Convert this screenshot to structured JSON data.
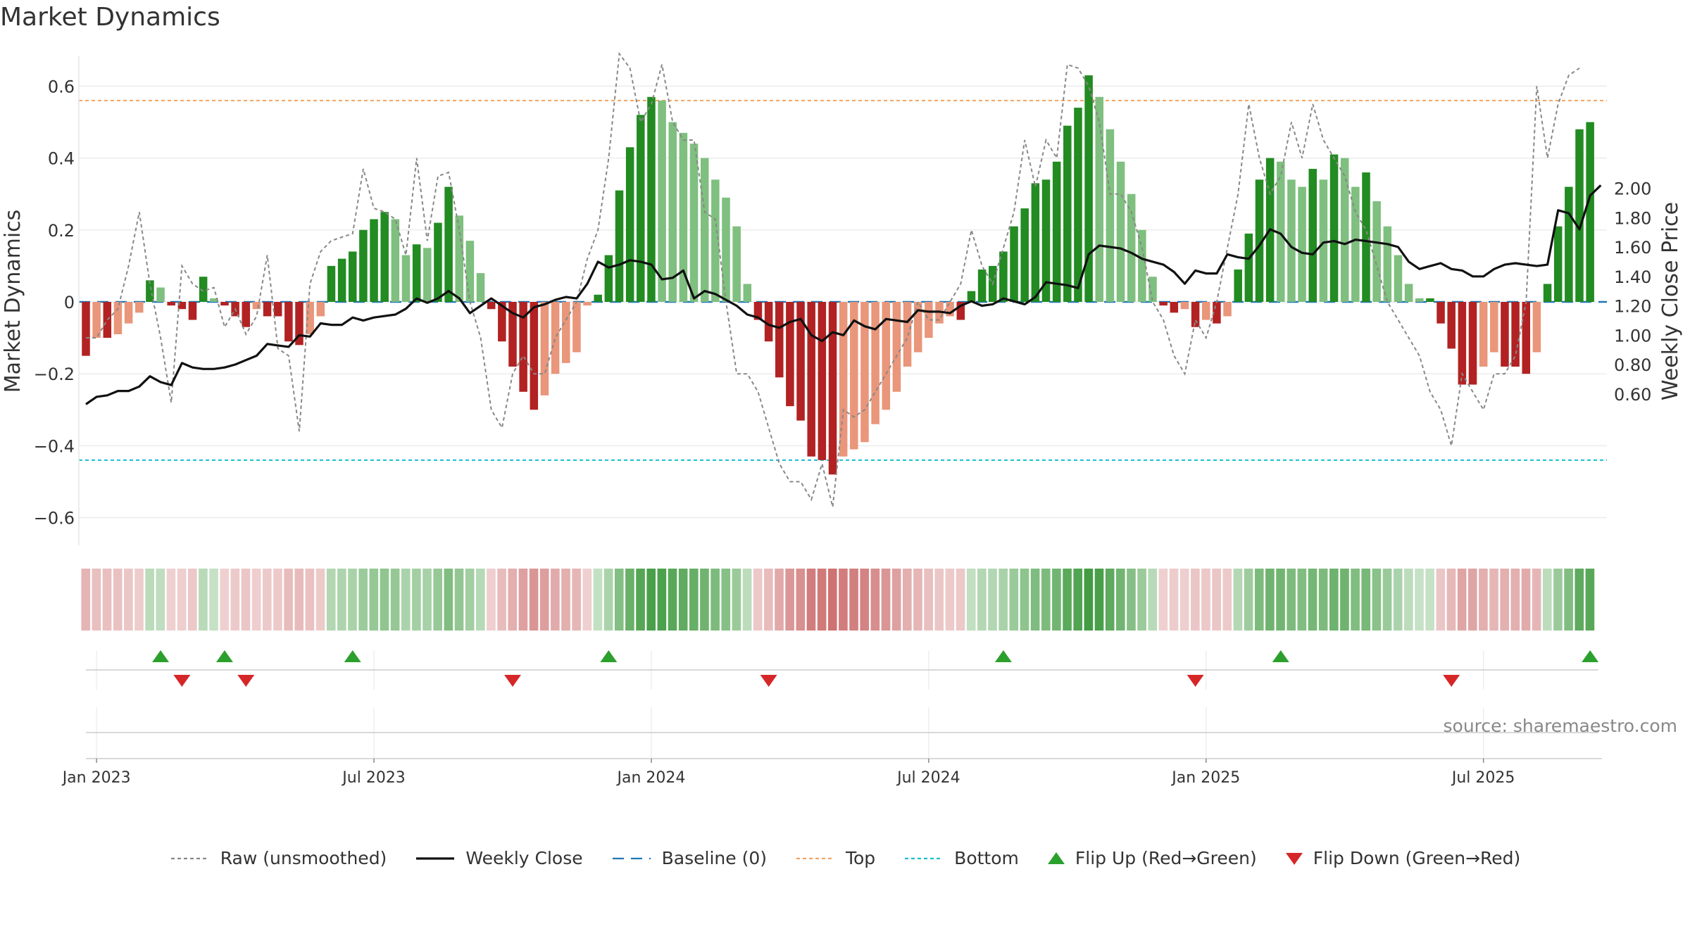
{
  "chart_data": {
    "type": "bar",
    "title": "Market Dynamics",
    "ylabel_left": "Market Dynamics",
    "ylabel_right": "Weekly Close Price",
    "source": "source: sharemaestro.com",
    "ylim_left": [
      -0.67,
      0.68
    ],
    "ylim_right": [
      0.5,
      2.1
    ],
    "left_ticks": [
      {
        "v": 0.6,
        "label": "0.6"
      },
      {
        "v": 0.4,
        "label": "0.4"
      },
      {
        "v": 0.2,
        "label": "0.2"
      },
      {
        "v": 0,
        "label": "0"
      },
      {
        "v": -0.2,
        "label": "−0.2"
      },
      {
        "v": -0.4,
        "label": "−0.4"
      },
      {
        "v": -0.6,
        "label": "−0.6"
      }
    ],
    "right_ticks": [
      {
        "v": 2.0,
        "label": "2.00"
      },
      {
        "v": 1.8,
        "label": "1.80"
      },
      {
        "v": 1.6,
        "label": "1.60"
      },
      {
        "v": 1.4,
        "label": "1.40"
      },
      {
        "v": 1.2,
        "label": "1.20"
      },
      {
        "v": 1.0,
        "label": "1.00"
      },
      {
        "v": 0.8,
        "label": "0.80"
      },
      {
        "v": 0.6,
        "label": "0.60"
      }
    ],
    "x_ticks": [
      {
        "i": 1,
        "label": "Jan 2023"
      },
      {
        "i": 27,
        "label": "Jul 2023"
      },
      {
        "i": 53,
        "label": "Jan 2024"
      },
      {
        "i": 79,
        "label": "Jul 2024"
      },
      {
        "i": 105,
        "label": "Jan 2025"
      },
      {
        "i": 131,
        "label": "Jul 2025"
      }
    ],
    "top_level": 0.56,
    "bottom_level": -0.44,
    "baseline": 0,
    "grid": true,
    "legend_position": "bottom-center",
    "colors": {
      "strong_green": "#228b22",
      "light_green": "#7fbf7f",
      "strong_red": "#b22222",
      "light_red": "#e9967a",
      "raw": "#888888",
      "weekly_close": "#111111",
      "baseline": "#1f77b4",
      "top": "#f4a460",
      "bottom": "#17becf",
      "flip_up": "#2ca02c",
      "flip_down": "#d62728"
    },
    "momentum": [
      -0.15,
      -0.1,
      -0.1,
      -0.09,
      -0.06,
      -0.03,
      0.06,
      0.04,
      -0.01,
      -0.02,
      -0.05,
      0.07,
      0.01,
      -0.01,
      -0.04,
      -0.07,
      -0.02,
      -0.04,
      -0.04,
      -0.11,
      -0.12,
      -0.09,
      -0.04,
      0.1,
      0.12,
      0.14,
      0.2,
      0.23,
      0.25,
      0.23,
      0.13,
      0.16,
      0.15,
      0.22,
      0.32,
      0.24,
      0.17,
      0.08,
      -0.02,
      -0.11,
      -0.18,
      -0.25,
      -0.3,
      -0.26,
      -0.2,
      -0.17,
      -0.14,
      -0.01,
      0.02,
      0.13,
      0.31,
      0.43,
      0.52,
      0.57,
      0.56,
      0.5,
      0.47,
      0.44,
      0.4,
      0.34,
      0.29,
      0.21,
      0.05,
      -0.05,
      -0.11,
      -0.21,
      -0.29,
      -0.33,
      -0.43,
      -0.44,
      -0.48,
      -0.43,
      -0.41,
      -0.39,
      -0.34,
      -0.3,
      -0.25,
      -0.18,
      -0.14,
      -0.1,
      -0.06,
      -0.04,
      -0.05,
      0.03,
      0.09,
      0.1,
      0.14,
      0.21,
      0.26,
      0.33,
      0.34,
      0.39,
      0.49,
      0.54,
      0.63,
      0.57,
      0.48,
      0.39,
      0.3,
      0.2,
      0.07,
      -0.01,
      -0.03,
      -0.02,
      -0.07,
      -0.05,
      -0.06,
      -0.04,
      0.09,
      0.19,
      0.34,
      0.4,
      0.39,
      0.34,
      0.32,
      0.37,
      0.34,
      0.41,
      0.4,
      0.32,
      0.36,
      0.28,
      0.21,
      0.13,
      0.05,
      0.01,
      0.01,
      -0.06,
      -0.13,
      -0.23,
      -0.23,
      -0.18,
      -0.14,
      -0.18,
      -0.18,
      -0.2,
      -0.14,
      0.05,
      0.21,
      0.32,
      0.48,
      0.5
    ],
    "raw": [
      -0.1,
      -0.1,
      -0.05,
      -0.02,
      0.1,
      0.25,
      0.05,
      -0.1,
      -0.28,
      0.1,
      0.05,
      0.03,
      0.04,
      -0.07,
      -0.02,
      -0.09,
      -0.04,
      0.13,
      -0.13,
      -0.15,
      -0.36,
      0.05,
      0.14,
      0.17,
      0.18,
      0.19,
      0.37,
      0.26,
      0.25,
      0.23,
      0.13,
      0.4,
      0.17,
      0.35,
      0.36,
      0.2,
      0.0,
      -0.1,
      -0.3,
      -0.35,
      -0.2,
      -0.15,
      -0.2,
      -0.2,
      -0.1,
      -0.05,
      0.0,
      0.12,
      0.2,
      0.4,
      0.69,
      0.65,
      0.5,
      0.55,
      0.66,
      0.5,
      0.45,
      0.45,
      0.25,
      0.23,
      0.0,
      -0.2,
      -0.2,
      -0.25,
      -0.35,
      -0.45,
      -0.5,
      -0.5,
      -0.55,
      -0.45,
      -0.57,
      -0.3,
      -0.32,
      -0.3,
      -0.25,
      -0.2,
      -0.15,
      -0.1,
      0.0,
      -0.05,
      -0.05,
      0.0,
      0.05,
      0.2,
      0.1,
      0.05,
      0.15,
      0.25,
      0.45,
      0.32,
      0.45,
      0.4,
      0.66,
      0.65,
      0.6,
      0.5,
      0.3,
      0.3,
      0.25,
      0.15,
      0.0,
      -0.05,
      -0.15,
      -0.2,
      -0.05,
      -0.1,
      0.0,
      0.15,
      0.3,
      0.55,
      0.4,
      0.3,
      0.35,
      0.5,
      0.4,
      0.55,
      0.45,
      0.4,
      0.35,
      0.25,
      0.2,
      0.1,
      0.0,
      -0.05,
      -0.1,
      -0.15,
      -0.25,
      -0.3,
      -0.4,
      -0.2,
      -0.25,
      -0.3,
      -0.2,
      -0.2,
      -0.15,
      0.0,
      0.6,
      0.4,
      0.55,
      0.63,
      0.65
    ],
    "weekly_close": [
      0.53,
      0.58,
      0.59,
      0.62,
      0.62,
      0.65,
      0.72,
      0.68,
      0.66,
      0.81,
      0.78,
      0.77,
      0.77,
      0.78,
      0.8,
      0.83,
      0.86,
      0.94,
      0.93,
      0.92,
      1.0,
      0.99,
      1.08,
      1.07,
      1.07,
      1.12,
      1.1,
      1.12,
      1.13,
      1.14,
      1.18,
      1.25,
      1.22,
      1.25,
      1.3,
      1.25,
      1.15,
      1.2,
      1.25,
      1.2,
      1.15,
      1.12,
      1.19,
      1.21,
      1.24,
      1.26,
      1.25,
      1.35,
      1.5,
      1.46,
      1.48,
      1.51,
      1.5,
      1.48,
      1.38,
      1.39,
      1.44,
      1.25,
      1.3,
      1.28,
      1.24,
      1.2,
      1.14,
      1.12,
      1.07,
      1.05,
      1.09,
      1.11,
      1.0,
      0.96,
      1.02,
      1.0,
      1.1,
      1.06,
      1.04,
      1.11,
      1.1,
      1.09,
      1.17,
      1.16,
      1.16,
      1.15,
      1.2,
      1.23,
      1.2,
      1.21,
      1.25,
      1.23,
      1.21,
      1.26,
      1.36,
      1.35,
      1.34,
      1.32,
      1.55,
      1.61,
      1.6,
      1.59,
      1.56,
      1.52,
      1.5,
      1.48,
      1.43,
      1.35,
      1.44,
      1.42,
      1.42,
      1.55,
      1.53,
      1.52,
      1.61,
      1.72,
      1.69,
      1.6,
      1.56,
      1.55,
      1.63,
      1.64,
      1.62,
      1.65,
      1.64,
      1.63,
      1.62,
      1.6,
      1.5,
      1.45,
      1.47,
      1.49,
      1.45,
      1.44,
      1.4,
      1.4,
      1.45,
      1.48,
      1.49,
      1.48,
      1.47,
      1.48,
      1.85,
      1.83,
      1.72,
      1.95,
      2.02
    ],
    "flips_up": [
      7,
      13,
      25,
      49,
      86,
      112,
      141
    ],
    "flips_down": [
      9,
      15,
      40,
      64,
      104,
      128
    ],
    "legend": [
      {
        "key": "raw",
        "label": "Raw (unsmoothed)"
      },
      {
        "key": "weekly_close",
        "label": "Weekly Close"
      },
      {
        "key": "baseline",
        "label": "Baseline (0)"
      },
      {
        "key": "top",
        "label": "Top"
      },
      {
        "key": "bottom",
        "label": "Bottom"
      },
      {
        "key": "flip_up",
        "label": "Flip Up (Red→Green)"
      },
      {
        "key": "flip_down",
        "label": "Flip Down (Green→Red)"
      }
    ]
  }
}
